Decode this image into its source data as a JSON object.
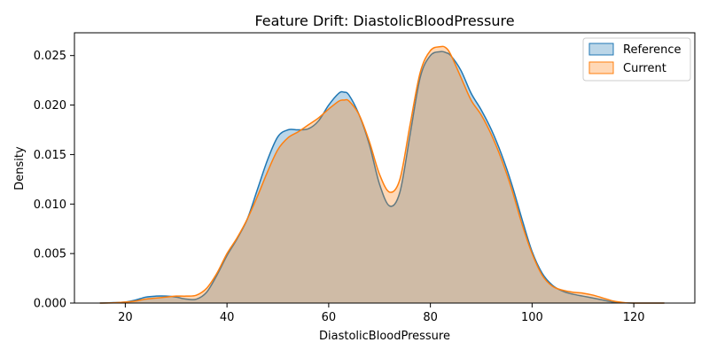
{
  "chart_data": {
    "type": "area",
    "title": "Feature Drift: DiastolicBloodPressure",
    "xlabel": "DiastolicBloodPressure",
    "ylabel": "Density",
    "xlim": [
      10,
      132
    ],
    "ylim": [
      0,
      0.0273
    ],
    "xticks": [
      20,
      40,
      60,
      80,
      100,
      120
    ],
    "yticks": [
      0.0,
      0.005,
      0.01,
      0.015,
      0.02,
      0.025
    ],
    "ytick_labels": [
      "0.000",
      "0.005",
      "0.010",
      "0.015",
      "0.020",
      "0.025"
    ],
    "grid": false,
    "legend_position": "top-right",
    "x": [
      15,
      18,
      20,
      22,
      24,
      26,
      28,
      30,
      32,
      34,
      36,
      38,
      40,
      42,
      44,
      46,
      48,
      50,
      52,
      54,
      56,
      58,
      60,
      62,
      63,
      64,
      66,
      68,
      70,
      72,
      74,
      76,
      78,
      80,
      82,
      83,
      84,
      86,
      88,
      90,
      92,
      94,
      96,
      98,
      100,
      102,
      104,
      106,
      108,
      110,
      112,
      114,
      116,
      118,
      120,
      123,
      126
    ],
    "series": [
      {
        "name": "Reference",
        "color": "#1f77b4",
        "fill": "#aecbe6",
        "values": [
          0.0,
          5e-05,
          0.0001,
          0.0003,
          0.0006,
          0.0007,
          0.0007,
          0.0006,
          0.0004,
          0.0004,
          0.0011,
          0.0028,
          0.0048,
          0.0065,
          0.0085,
          0.0115,
          0.0145,
          0.0168,
          0.0175,
          0.0175,
          0.0176,
          0.0184,
          0.02,
          0.0212,
          0.0213,
          0.021,
          0.019,
          0.016,
          0.012,
          0.0098,
          0.0112,
          0.017,
          0.0228,
          0.025,
          0.0254,
          0.0253,
          0.025,
          0.0235,
          0.0212,
          0.0195,
          0.0175,
          0.015,
          0.012,
          0.0085,
          0.0052,
          0.003,
          0.0018,
          0.0012,
          0.0009,
          0.0007,
          0.0005,
          0.0003,
          0.0001,
          3e-05,
          0.0,
          0.0,
          0.0
        ]
      },
      {
        "name": "Current",
        "color": "#ff7f0e",
        "fill": "#ffd0a6",
        "values": [
          0.0,
          3e-05,
          0.0001,
          0.0002,
          0.0004,
          0.0005,
          0.0006,
          0.0007,
          0.0007,
          0.0008,
          0.0015,
          0.003,
          0.005,
          0.0066,
          0.0085,
          0.0108,
          0.0133,
          0.0155,
          0.0167,
          0.0173,
          0.018,
          0.0187,
          0.0196,
          0.0204,
          0.0205,
          0.0204,
          0.019,
          0.0163,
          0.013,
          0.0112,
          0.0125,
          0.018,
          0.0233,
          0.0255,
          0.0259,
          0.0258,
          0.0251,
          0.0228,
          0.0205,
          0.019,
          0.017,
          0.0145,
          0.0115,
          0.008,
          0.005,
          0.0028,
          0.0017,
          0.0013,
          0.0011,
          0.001,
          0.0008,
          0.0005,
          0.0002,
          5e-05,
          0.0,
          0.0,
          0.0
        ]
      }
    ]
  }
}
